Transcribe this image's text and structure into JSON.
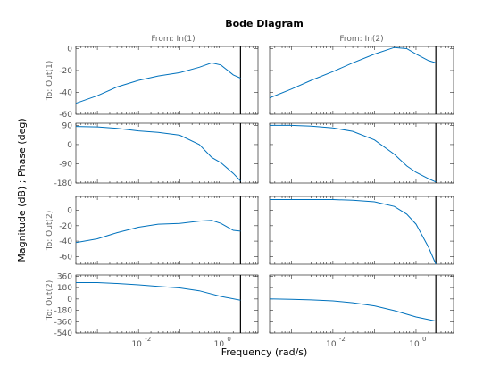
{
  "chart_data": {
    "type": "line",
    "title": "Bode Diagram",
    "xlabel": "Frequency  (rad/s)",
    "ylabel": "Magnitude (dB) ; Phase (deg)",
    "x_scale": "log",
    "xlim": [
      0.0003,
      8
    ],
    "x_ticks": [
      {
        "value": 0.01,
        "label": "10"
      },
      {
        "value": 1,
        "label": "10"
      }
    ],
    "x_tick_exponents": [
      "-2",
      "0"
    ],
    "column_titles": [
      "From: In(1)",
      "From: In(2)"
    ],
    "row_titles": [
      "To: Out(1)",
      "To: Out(2)"
    ],
    "marker_line_x": 3,
    "line_color": "#0072bd",
    "panels": [
      {
        "row": 0,
        "col": 0,
        "kind": "magnitude",
        "ylim": [
          -60,
          2
        ],
        "yticks": [
          0,
          -20,
          -40,
          -60
        ],
        "yticklabels": [
          "0",
          "-20",
          "-40",
          "-60"
        ],
        "x": [
          0.0003,
          0.001,
          0.003,
          0.01,
          0.03,
          0.1,
          0.3,
          0.6,
          1,
          2,
          3
        ],
        "y": [
          -50,
          -43,
          -35,
          -29,
          -25,
          -22,
          -17,
          -13,
          -15,
          -24,
          -27
        ]
      },
      {
        "row": 1,
        "col": 0,
        "kind": "phase",
        "ylim": [
          -180,
          100
        ],
        "yticks": [
          90,
          0,
          -90,
          -180
        ],
        "yticklabels": [
          "90",
          "0",
          "-90",
          "-180"
        ],
        "x": [
          0.0003,
          0.001,
          0.003,
          0.01,
          0.03,
          0.1,
          0.3,
          0.6,
          1,
          2,
          3
        ],
        "y": [
          85,
          83,
          76,
          64,
          57,
          44,
          0,
          -60,
          -85,
          -135,
          -170
        ]
      },
      {
        "row": 2,
        "col": 0,
        "kind": "magnitude",
        "ylim": [
          -70,
          18
        ],
        "yticks": [
          0,
          -20,
          -40,
          -60
        ],
        "yticklabels": [
          "0",
          "-20",
          "-40",
          "-60"
        ],
        "x": [
          0.0003,
          0.001,
          0.003,
          0.01,
          0.03,
          0.1,
          0.3,
          0.6,
          1,
          2,
          3
        ],
        "y": [
          -42,
          -37,
          -29,
          -22,
          -18,
          -17,
          -14,
          -13,
          -17,
          -26,
          -27
        ]
      },
      {
        "row": 3,
        "col": 0,
        "kind": "phase",
        "ylim": [
          -540,
          380
        ],
        "yticks": [
          360,
          180,
          0,
          -180,
          -360,
          -540
        ],
        "yticklabels": [
          "360",
          "180",
          "0",
          "-180",
          "-360",
          "-540"
        ],
        "x": [
          0.0003,
          0.001,
          0.003,
          0.01,
          0.03,
          0.1,
          0.3,
          1,
          3
        ],
        "y": [
          260,
          260,
          245,
          225,
          200,
          175,
          130,
          40,
          -20
        ]
      },
      {
        "row": 0,
        "col": 1,
        "kind": "magnitude",
        "ylim": [
          -60,
          2
        ],
        "yticks": [
          0,
          -20,
          -40,
          -60
        ],
        "yticklabels": [
          "0",
          "-20",
          "-40",
          "-60"
        ],
        "x": [
          0.0003,
          0.001,
          0.003,
          0.01,
          0.03,
          0.1,
          0.3,
          0.6,
          1,
          2,
          3
        ],
        "y": [
          -45,
          -37,
          -29,
          -21,
          -13,
          -5,
          1,
          0,
          -5,
          -11,
          -13
        ]
      },
      {
        "row": 1,
        "col": 1,
        "kind": "phase",
        "ylim": [
          -180,
          100
        ],
        "yticks": [
          90,
          0,
          -90,
          -180
        ],
        "yticklabels": [
          "90",
          "0",
          "-90",
          "-180"
        ],
        "x": [
          0.0003,
          0.001,
          0.003,
          0.01,
          0.03,
          0.1,
          0.3,
          0.6,
          1,
          2,
          3
        ],
        "y": [
          90,
          90,
          86,
          78,
          62,
          22,
          -45,
          -100,
          -130,
          -160,
          -175
        ]
      },
      {
        "row": 2,
        "col": 1,
        "kind": "magnitude",
        "ylim": [
          -70,
          18
        ],
        "yticks": [
          0,
          -20,
          -40,
          -60
        ],
        "yticklabels": [
          "0",
          "-20",
          "-40",
          "-60"
        ],
        "x": [
          0.0003,
          0.001,
          0.01,
          0.03,
          0.1,
          0.3,
          0.6,
          1,
          2,
          3
        ],
        "y": [
          14,
          14,
          14,
          13,
          11,
          5,
          -5,
          -18,
          -48,
          -70
        ]
      },
      {
        "row": 3,
        "col": 1,
        "kind": "phase",
        "ylim": [
          -540,
          380
        ],
        "yticks": [
          360,
          180,
          0,
          -180,
          -360,
          -540
        ],
        "yticklabels": [
          "360",
          "180",
          "0",
          "-180",
          "-360",
          "-540"
        ],
        "x": [
          0.0003,
          0.001,
          0.003,
          0.01,
          0.03,
          0.1,
          0.3,
          1,
          3
        ],
        "y": [
          0,
          -5,
          -15,
          -30,
          -60,
          -110,
          -185,
          -285,
          -350
        ]
      }
    ]
  }
}
